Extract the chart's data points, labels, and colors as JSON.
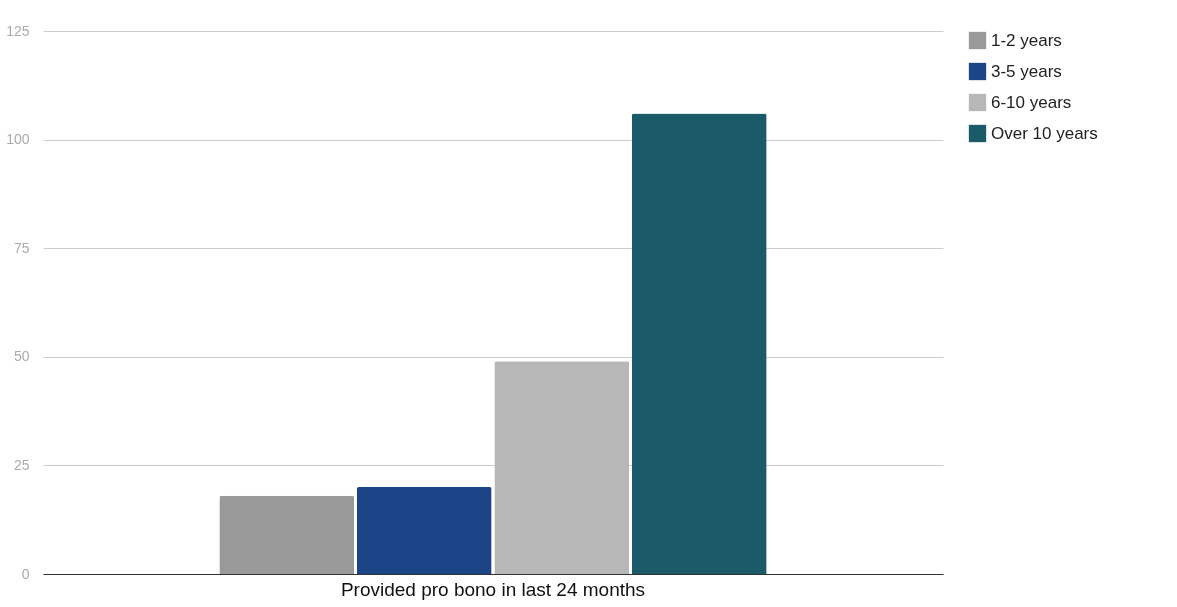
{
  "chart_data": {
    "type": "bar",
    "categories": [
      "Provided pro bono in last 24 months"
    ],
    "series": [
      {
        "name": "1-2 years",
        "color": "#999999",
        "values": [
          18
        ]
      },
      {
        "name": "3-5 years",
        "color": "#1c4587",
        "values": [
          20
        ]
      },
      {
        "name": "6-10 years",
        "color": "#b7b7b7",
        "values": [
          49
        ]
      },
      {
        "name": "Over 10 years",
        "color": "#1b5b69",
        "values": [
          106
        ]
      }
    ],
    "ylim": [
      0,
      125
    ],
    "yticks": [
      0,
      25,
      50,
      75,
      100,
      125
    ],
    "grid": "y",
    "legend": "right"
  }
}
